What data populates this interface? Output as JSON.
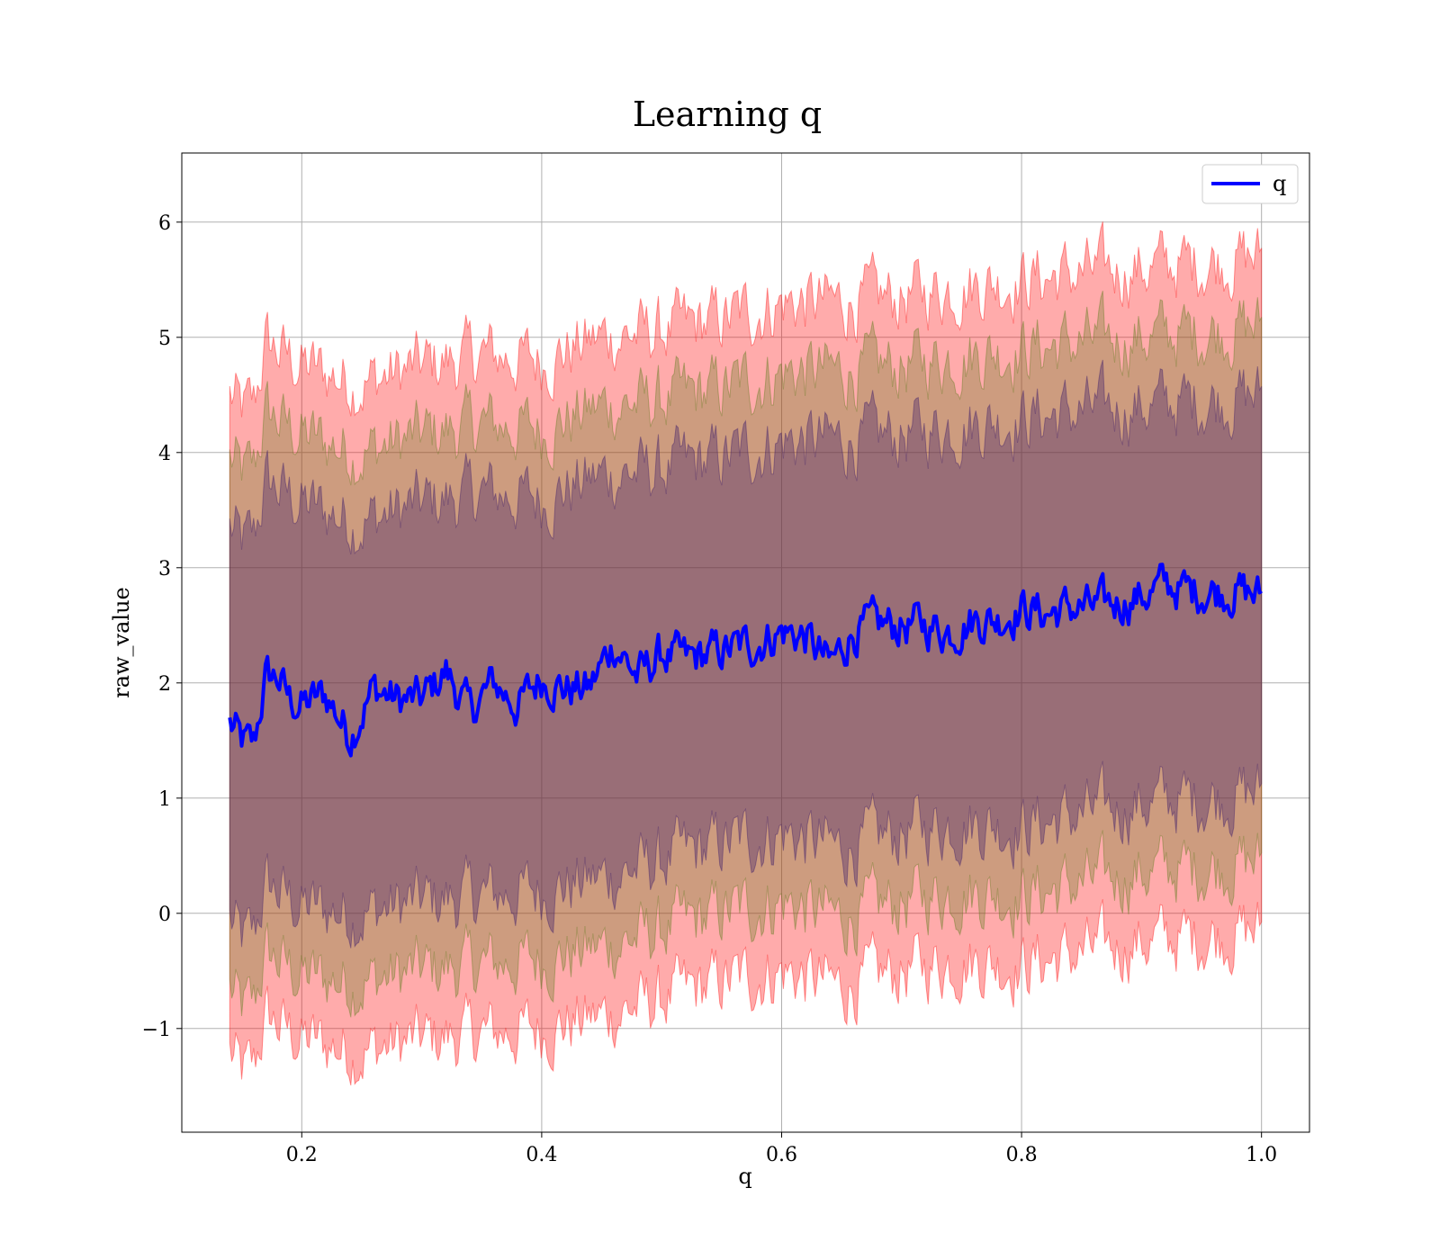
{
  "chart_data": {
    "type": "line",
    "title": "Learning q",
    "xlabel": "q",
    "ylabel": "raw_value",
    "xlim": [
      0.1,
      1.04
    ],
    "ylim": [
      -1.9,
      6.6
    ],
    "xticks": [
      0.2,
      0.4,
      0.6,
      0.8,
      1.0
    ],
    "xtick_labels": [
      "0.2",
      "0.4",
      "0.6",
      "0.8",
      "1.0"
    ],
    "yticks": [
      -1,
      0,
      1,
      2,
      3,
      4,
      5,
      6
    ],
    "ytick_labels": [
      "−1",
      "0",
      "1",
      "2",
      "3",
      "4",
      "5",
      "6"
    ],
    "grid": true,
    "legend_position": "top-right",
    "series": [
      {
        "name": "q",
        "color": "#0000ff",
        "x": [
          0.14,
          0.15,
          0.16,
          0.17,
          0.18,
          0.19,
          0.2,
          0.22,
          0.24,
          0.26,
          0.28,
          0.3,
          0.32,
          0.34,
          0.36,
          0.38,
          0.4,
          0.42,
          0.44,
          0.46,
          0.48,
          0.5,
          0.52,
          0.54,
          0.56,
          0.58,
          0.6,
          0.62,
          0.64,
          0.66,
          0.68,
          0.7,
          0.72,
          0.74,
          0.76,
          0.78,
          0.8,
          0.82,
          0.84,
          0.86,
          0.88,
          0.9,
          0.92,
          0.94,
          0.96,
          0.98,
          1.0
        ],
        "y": [
          1.65,
          1.48,
          1.45,
          2.05,
          2.05,
          1.85,
          1.8,
          1.9,
          1.55,
          1.95,
          1.85,
          1.85,
          2.1,
          1.75,
          2.0,
          1.8,
          2.05,
          1.95,
          1.95,
          2.35,
          2.05,
          2.25,
          2.2,
          2.25,
          2.3,
          2.35,
          2.45,
          2.4,
          2.15,
          2.45,
          2.5,
          2.5,
          2.5,
          2.45,
          2.55,
          2.55,
          2.65,
          2.6,
          2.65,
          2.65,
          2.7,
          2.75,
          2.85,
          2.8,
          2.8,
          2.8,
          2.75
        ]
      }
    ],
    "bands": [
      {
        "color": "#ff0000",
        "opacity": 0.33,
        "x": [
          0.14,
          0.15,
          0.16,
          0.17,
          0.2,
          0.25,
          0.3,
          0.35,
          0.4,
          0.45,
          0.5,
          0.55,
          0.6,
          0.65,
          0.7,
          0.75,
          0.8,
          0.85,
          0.9,
          0.95,
          1.0
        ],
        "upper": [
          4.5,
          4.35,
          4.4,
          4.95,
          4.75,
          4.6,
          4.75,
          4.85,
          4.8,
          5.0,
          5.05,
          5.15,
          5.3,
          5.3,
          5.35,
          5.45,
          5.5,
          5.55,
          5.6,
          5.65,
          5.7
        ],
        "lower": [
          -1.2,
          -1.4,
          -1.35,
          -0.9,
          -1.1,
          -1.2,
          -1.1,
          -1.05,
          -1.0,
          -0.9,
          -0.75,
          -0.6,
          -0.5,
          -0.65,
          -0.5,
          -0.4,
          -0.45,
          -0.35,
          -0.25,
          -0.2,
          -0.15
        ]
      },
      {
        "color": "#5a7a1a",
        "opacity": 0.3,
        "x": [
          0.14,
          0.15,
          0.16,
          0.17,
          0.2,
          0.25,
          0.3,
          0.35,
          0.4,
          0.45,
          0.5,
          0.55,
          0.6,
          0.65,
          0.7,
          0.75,
          0.8,
          0.85,
          0.9,
          0.95,
          1.0
        ],
        "upper": [
          3.95,
          3.8,
          3.85,
          4.35,
          4.15,
          4.0,
          4.15,
          4.25,
          4.2,
          4.4,
          4.45,
          4.55,
          4.7,
          4.7,
          4.75,
          4.85,
          4.9,
          4.95,
          5.0,
          5.05,
          5.1
        ],
        "lower": [
          -0.65,
          -0.85,
          -0.8,
          -0.35,
          -0.55,
          -0.6,
          -0.5,
          -0.45,
          -0.4,
          -0.3,
          -0.15,
          0.0,
          0.1,
          -0.05,
          0.1,
          0.2,
          0.15,
          0.25,
          0.35,
          0.4,
          0.45
        ]
      },
      {
        "color": "#3a1a6a",
        "opacity": 0.35,
        "x": [
          0.14,
          0.15,
          0.16,
          0.17,
          0.2,
          0.25,
          0.3,
          0.35,
          0.4,
          0.45,
          0.5,
          0.55,
          0.6,
          0.65,
          0.7,
          0.75,
          0.8,
          0.85,
          0.9,
          0.95,
          1.0
        ],
        "upper": [
          3.35,
          3.2,
          3.25,
          3.75,
          3.55,
          3.4,
          3.55,
          3.65,
          3.6,
          3.8,
          3.85,
          3.95,
          4.1,
          4.1,
          4.15,
          4.25,
          4.3,
          4.35,
          4.4,
          4.45,
          4.5
        ],
        "lower": [
          -0.05,
          -0.25,
          -0.2,
          0.25,
          0.05,
          0.0,
          0.1,
          0.15,
          0.2,
          0.3,
          0.45,
          0.6,
          0.7,
          0.55,
          0.7,
          0.8,
          0.75,
          0.85,
          0.95,
          1.0,
          1.05
        ]
      }
    ]
  }
}
